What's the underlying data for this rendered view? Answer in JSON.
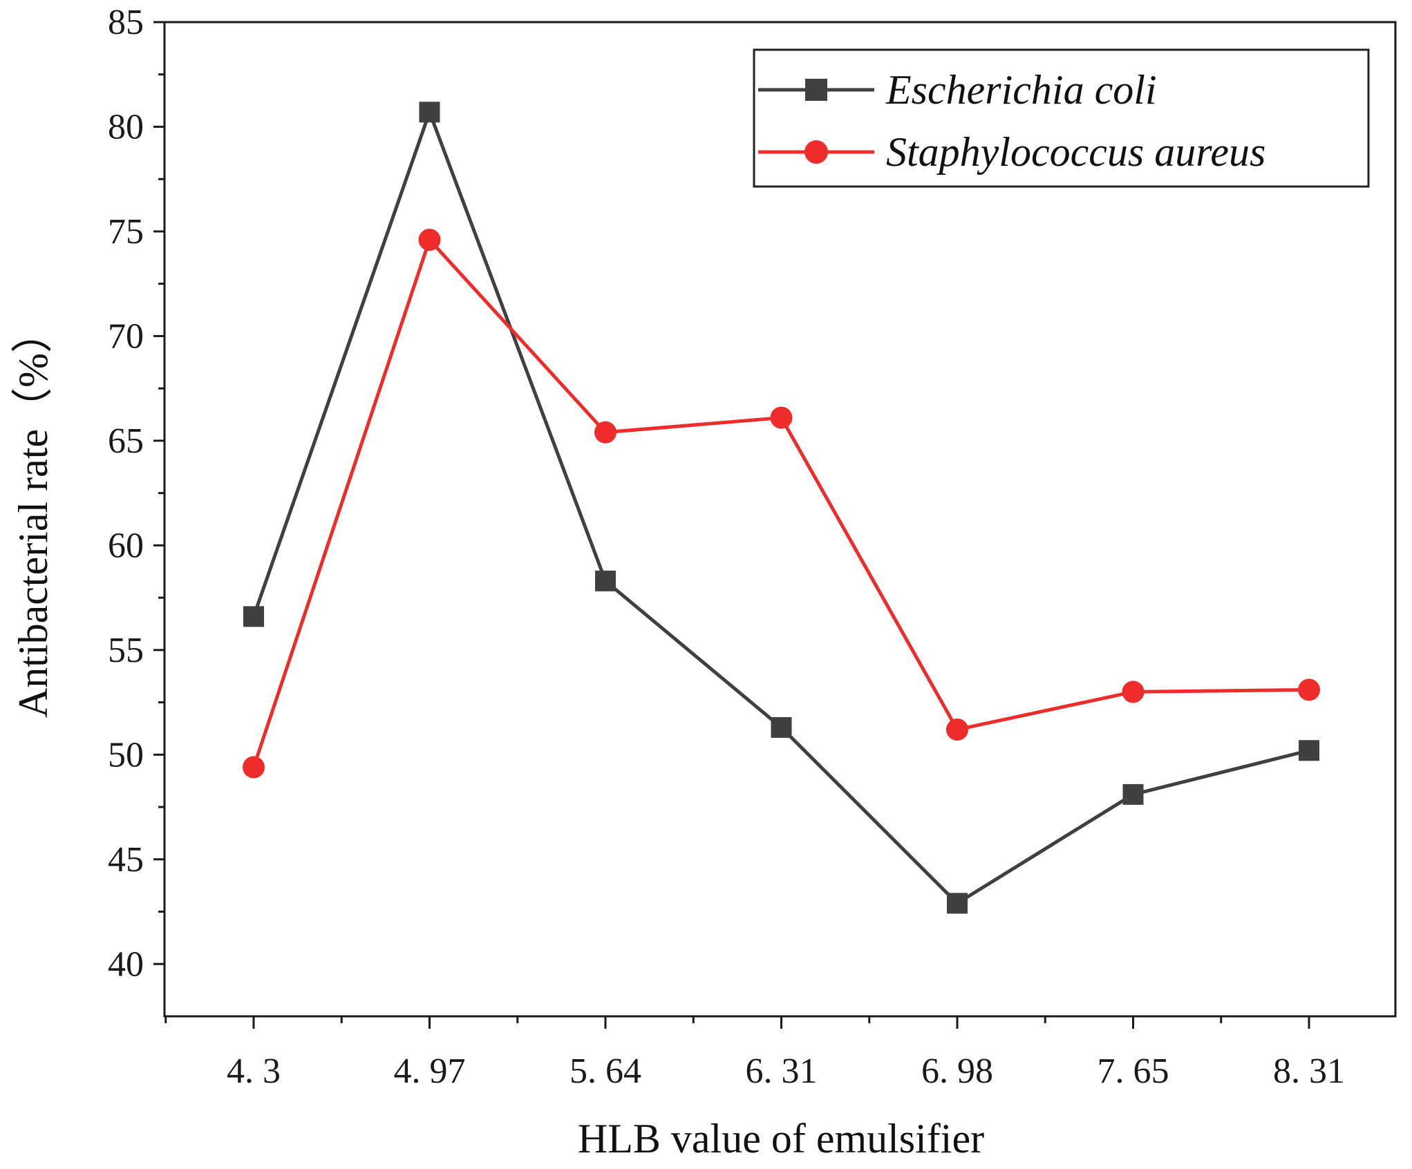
{
  "chart_data": {
    "type": "line",
    "title": "",
    "xlabel": "HLB value of emulsifier",
    "ylabel": "Antibacterial rate（%）",
    "categories": [
      "4.3",
      "4.97",
      "5.64",
      "6.31",
      "6.98",
      "7.65",
      "8.31"
    ],
    "category_labels": [
      "4. 3",
      "4. 97",
      "5. 64",
      "6. 31",
      "6. 98",
      "7. 65",
      "8. 31"
    ],
    "ylim": [
      37.5,
      85
    ],
    "yticks": [
      40,
      45,
      50,
      55,
      60,
      65,
      70,
      75,
      80,
      85
    ],
    "grid": false,
    "legend_position": "top-right",
    "series": [
      {
        "name": "Escherichia coli",
        "marker": "square",
        "color": "#404040",
        "values": [
          56.6,
          80.7,
          58.3,
          51.3,
          42.9,
          48.1,
          50.2
        ]
      },
      {
        "name": "Staphylococcus aureus",
        "marker": "circle",
        "color": "#ee2c2c",
        "values": [
          49.4,
          74.6,
          65.4,
          66.1,
          51.2,
          53.0,
          53.1
        ]
      }
    ]
  }
}
